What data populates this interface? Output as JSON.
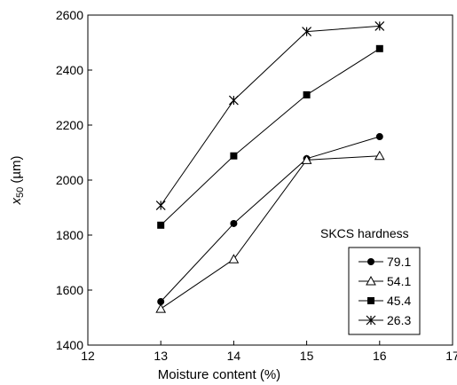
{
  "chart_data": {
    "type": "line",
    "xlabel": "Moisture content (%)",
    "ylabel": "x",
    "ylabel_sub": "50",
    "ylabel_unit": " (µm)",
    "xlim": [
      12,
      17
    ],
    "ylim": [
      1400,
      2600
    ],
    "xticks": [
      "12",
      "13",
      "14",
      "15",
      "16",
      "17"
    ],
    "yticks": [
      "1400",
      "1600",
      "1800",
      "2000",
      "2200",
      "2400",
      "2600"
    ],
    "grid": false,
    "legend_title": "SKCS hardness",
    "legend_position": "right",
    "series": [
      {
        "name": "79.1",
        "marker": "filled-circle",
        "x": [
          13,
          14,
          15,
          16
        ],
        "values": [
          1558,
          1842,
          2078,
          2158
        ]
      },
      {
        "name": "54.1",
        "marker": "open-triangle",
        "x": [
          13,
          14,
          15,
          16
        ],
        "values": [
          1532,
          1712,
          2073,
          2088
        ]
      },
      {
        "name": "45.4",
        "marker": "filled-square",
        "x": [
          13,
          14,
          15,
          16
        ],
        "values": [
          1836,
          2088,
          2310,
          2478
        ]
      },
      {
        "name": "26.3",
        "marker": "asterisk",
        "x": [
          13,
          14,
          15,
          16
        ],
        "values": [
          1908,
          2290,
          2540,
          2560
        ]
      }
    ]
  }
}
